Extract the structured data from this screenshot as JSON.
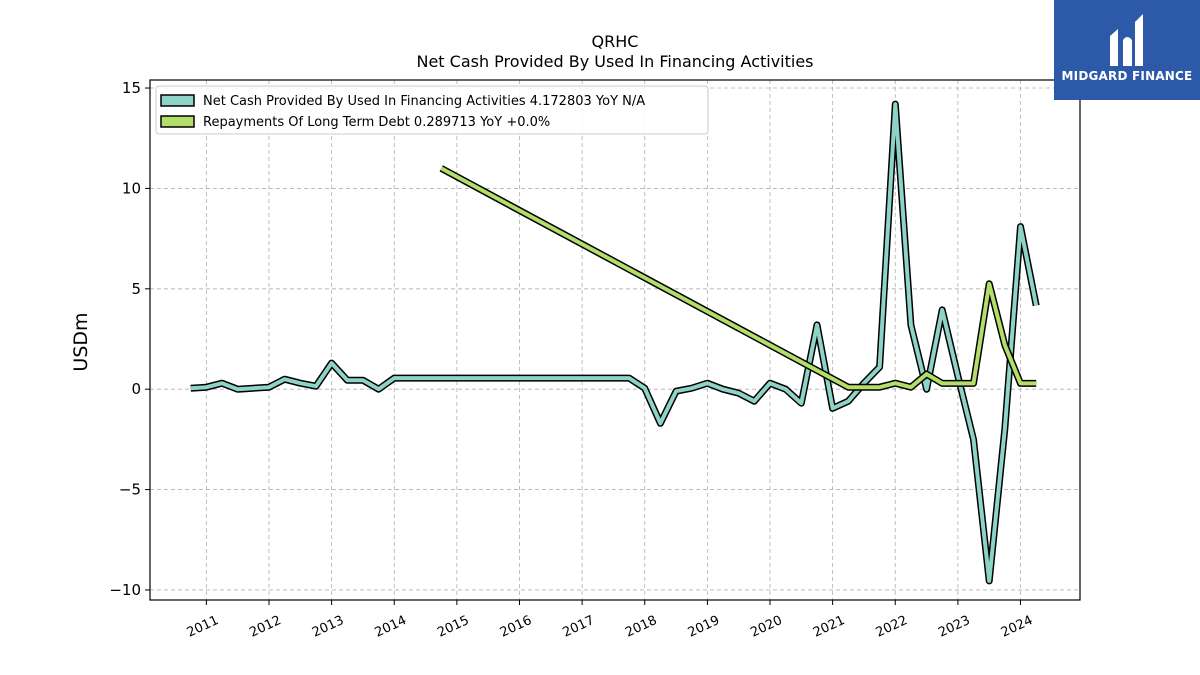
{
  "chart_data": {
    "type": "line",
    "title": "QRHC",
    "subtitle": "Net Cash Provided By Used In Financing Activities",
    "ylabel": "USDm",
    "xlabel": "",
    "ylim": [
      -10.5,
      15.4
    ],
    "xlim": [
      2010.1,
      2024.95
    ],
    "yticks": [
      15,
      10,
      5,
      0,
      -5,
      -10
    ],
    "ytick_labels": [
      "15",
      "10",
      "5",
      "0",
      "−5",
      "−10"
    ],
    "xticks": [
      2011,
      2012,
      2013,
      2014,
      2015,
      2016,
      2017,
      2018,
      2019,
      2020,
      2021,
      2022,
      2023,
      2024
    ],
    "xtick_labels": [
      "2011",
      "2012",
      "2013",
      "2014",
      "2015",
      "2016",
      "2017",
      "2018",
      "2019",
      "2020",
      "2021",
      "2022",
      "2023",
      "2024"
    ],
    "grid": true,
    "legend_position": "top-left",
    "series": [
      {
        "name": "Net Cash Provided By Used In Financing Activities  4.172803 YoY N/A",
        "color": "#8dd3c7",
        "points": [
          [
            2010.75,
            0.05
          ],
          [
            2011.0,
            0.1
          ],
          [
            2011.25,
            0.3
          ],
          [
            2011.5,
            0.0
          ],
          [
            2011.75,
            0.05
          ],
          [
            2012.0,
            0.1
          ],
          [
            2012.25,
            0.5
          ],
          [
            2012.5,
            0.3
          ],
          [
            2012.75,
            0.15
          ],
          [
            2013.0,
            1.3
          ],
          [
            2013.25,
            0.45
          ],
          [
            2013.5,
            0.45
          ],
          [
            2013.75,
            0.0
          ],
          [
            2014.0,
            0.55
          ],
          [
            2017.75,
            0.55
          ],
          [
            2018.0,
            0.05
          ],
          [
            2018.25,
            -1.7
          ],
          [
            2018.5,
            -0.1
          ],
          [
            2018.75,
            0.05
          ],
          [
            2019.0,
            0.3
          ],
          [
            2019.25,
            0.0
          ],
          [
            2019.5,
            -0.2
          ],
          [
            2019.75,
            -0.6
          ],
          [
            2020.0,
            0.3
          ],
          [
            2020.25,
            0.0
          ],
          [
            2020.5,
            -0.7
          ],
          [
            2020.75,
            3.2
          ],
          [
            2021.0,
            -0.95
          ],
          [
            2021.25,
            -0.6
          ],
          [
            2021.5,
            0.3
          ],
          [
            2021.75,
            1.1
          ],
          [
            2022.0,
            14.2
          ],
          [
            2022.25,
            3.2
          ],
          [
            2022.5,
            0.0
          ],
          [
            2022.75,
            3.95
          ],
          [
            2023.0,
            0.65
          ],
          [
            2023.25,
            -2.5
          ],
          [
            2023.5,
            -9.55
          ],
          [
            2023.75,
            -2.0
          ],
          [
            2024.0,
            8.1
          ],
          [
            2024.25,
            4.17
          ]
        ]
      },
      {
        "name": "Repayments Of Long Term Debt  0.289713 YoY +0.0%",
        "color": "#b3de69",
        "points": [
          [
            2014.75,
            11.0
          ],
          [
            2021.25,
            0.1
          ],
          [
            2021.75,
            0.1
          ],
          [
            2022.0,
            0.3
          ],
          [
            2022.25,
            0.1
          ],
          [
            2022.5,
            0.75
          ],
          [
            2022.75,
            0.29
          ],
          [
            2023.0,
            0.29
          ],
          [
            2023.25,
            0.29
          ],
          [
            2023.5,
            5.25
          ],
          [
            2023.75,
            2.2
          ],
          [
            2024.0,
            0.29
          ],
          [
            2024.25,
            0.29
          ]
        ]
      }
    ]
  },
  "logo": {
    "text": "MIDGARD FINANCE",
    "background": "#2d5aa8"
  }
}
